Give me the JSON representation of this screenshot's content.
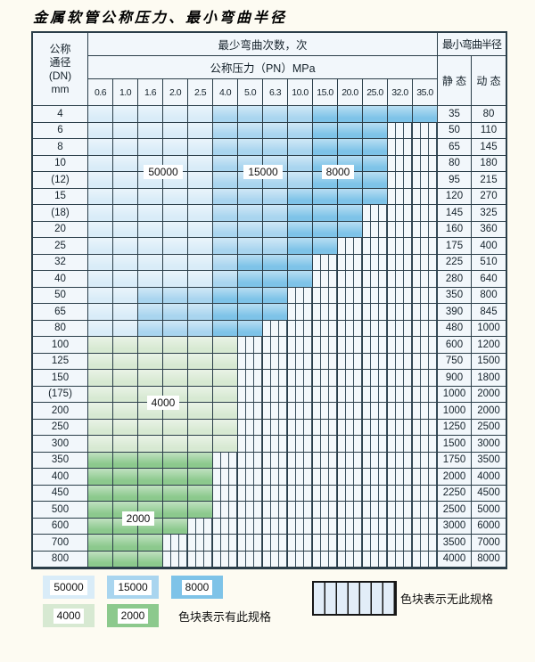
{
  "title": "金属软管公称压力、最小弯曲半径",
  "table": {
    "dn_header_lines": [
      "公称",
      "通径",
      "(DN)",
      "mm"
    ],
    "cycles_header": "最少弯曲次数，次",
    "pressure_header": "公称压力（PN）MPa",
    "radius_header": "最小弯曲半径",
    "static_label": "静 态",
    "dynamic_label": "动 态",
    "pressures": [
      "0.6",
      "1.0",
      "1.6",
      "2.0",
      "2.5",
      "4.0",
      "5.0",
      "6.3",
      "10.0",
      "15.0",
      "20.0",
      "25.0",
      "32.0",
      "35.0"
    ],
    "rows": [
      {
        "dn": "4",
        "zones": "LLLLLMMMMDDDDD",
        "static": "35",
        "dynamic": "80"
      },
      {
        "dn": "6",
        "zones": "LLLLLMMMMDDDSS",
        "static": "50",
        "dynamic": "110"
      },
      {
        "dn": "8",
        "zones": "LLLLLMMMMDDDSS",
        "static": "65",
        "dynamic": "145"
      },
      {
        "dn": "10",
        "zones": "LLLLLMMMMDDDSS",
        "static": "80",
        "dynamic": "180"
      },
      {
        "dn": "(12)",
        "zones": "LLLLLMMMMDDDSS",
        "static": "95",
        "dynamic": "215"
      },
      {
        "dn": "15",
        "zones": "LLLLLMMMDDDDSS",
        "static": "120",
        "dynamic": "270"
      },
      {
        "dn": "(18)",
        "zones": "LLLLLMMMDDDSSS",
        "static": "145",
        "dynamic": "325"
      },
      {
        "dn": "20",
        "zones": "LLLLLMMMDDDSSS",
        "static": "160",
        "dynamic": "360"
      },
      {
        "dn": "25",
        "zones": "LLLLLMMMDDSSSS",
        "static": "175",
        "dynamic": "400"
      },
      {
        "dn": "32",
        "zones": "LLLLLMDDDSSSSS",
        "static": "225",
        "dynamic": "510"
      },
      {
        "dn": "40",
        "zones": "LLLLLMDDDSSSSS",
        "static": "280",
        "dynamic": "640"
      },
      {
        "dn": "50",
        "zones": "LLMMMDDDSSSSSS",
        "static": "350",
        "dynamic": "800"
      },
      {
        "dn": "65",
        "zones": "LLMMMDDDSSSSSS",
        "static": "390",
        "dynamic": "845"
      },
      {
        "dn": "80",
        "zones": "LLMMMDDSSSSSSS",
        "static": "480",
        "dynamic": "1000"
      },
      {
        "dn": "100",
        "zones": "GGGGGGSSSSSSSS",
        "static": "600",
        "dynamic": "1200"
      },
      {
        "dn": "125",
        "zones": "GGGGGGSSSSSSSS",
        "static": "750",
        "dynamic": "1500"
      },
      {
        "dn": "150",
        "zones": "GGGGGGSSSSSSSS",
        "static": "900",
        "dynamic": "1800"
      },
      {
        "dn": "(175)",
        "zones": "GGGGGGSSSSSSSS",
        "static": "1000",
        "dynamic": "2000"
      },
      {
        "dn": "200",
        "zones": "GGGGGGSSSSSSSS",
        "static": "1000",
        "dynamic": "2000"
      },
      {
        "dn": "250",
        "zones": "GGGGGGSSSSSSSS",
        "static": "1250",
        "dynamic": "2500"
      },
      {
        "dn": "300",
        "zones": "GGGGGGSSSSSSSS",
        "static": "1500",
        "dynamic": "3000"
      },
      {
        "dn": "350",
        "zones": "gggggSSSSSSSSS",
        "static": "1750",
        "dynamic": "3500"
      },
      {
        "dn": "400",
        "zones": "gggggSSSSSSSSS",
        "static": "2000",
        "dynamic": "4000"
      },
      {
        "dn": "450",
        "zones": "gggggSSSSSSSSS",
        "static": "2250",
        "dynamic": "4500"
      },
      {
        "dn": "500",
        "zones": "gggggSSSSSSSSS",
        "static": "2500",
        "dynamic": "5000"
      },
      {
        "dn": "600",
        "zones": "ggggSSSSSSSSSS",
        "static": "3000",
        "dynamic": "6000"
      },
      {
        "dn": "700",
        "zones": "gggSSSSSSSSSSS",
        "static": "3500",
        "dynamic": "7000"
      },
      {
        "dn": "800",
        "zones": "gggSSSSSSSSSSS",
        "static": "4000",
        "dynamic": "8000"
      }
    ],
    "overlays": [
      {
        "text": "50000",
        "col_start": 2,
        "col_end": 3,
        "row_start": 3,
        "row_end": 4
      },
      {
        "text": "15000",
        "col_start": 6,
        "col_end": 7,
        "row_start": 3,
        "row_end": 4
      },
      {
        "text": "8000",
        "col_start": 9,
        "col_end": 10,
        "row_start": 3,
        "row_end": 4
      },
      {
        "text": "4000",
        "col_start": 2,
        "col_end": 3,
        "row_start": 17,
        "row_end": 18
      },
      {
        "text": "2000",
        "col_start": 1,
        "col_end": 2,
        "row_start": 24,
        "row_end": 25
      }
    ]
  },
  "legend": {
    "row1_items": [
      {
        "label": "50000",
        "code": "L"
      },
      {
        "label": "15000",
        "code": "M"
      },
      {
        "label": "8000",
        "code": "D"
      }
    ],
    "row2_items": [
      {
        "label": "4000",
        "code": "G"
      },
      {
        "label": "2000",
        "code": "g"
      }
    ],
    "has_spec_text": "色块表示有此规格",
    "no_spec_text": "色块表示无此规格"
  },
  "colors": {
    "cycles_50000": "#d9ecf8",
    "cycles_15000": "#a9d5ef",
    "cycles_8000": "#7ec3e8",
    "cycles_4000": "#d7e9d2",
    "cycles_2000": "#8cc98d",
    "grid": "#2b3e49",
    "stripe_bg": "#f3f8fb",
    "header_bg": "#f2f7fb"
  }
}
